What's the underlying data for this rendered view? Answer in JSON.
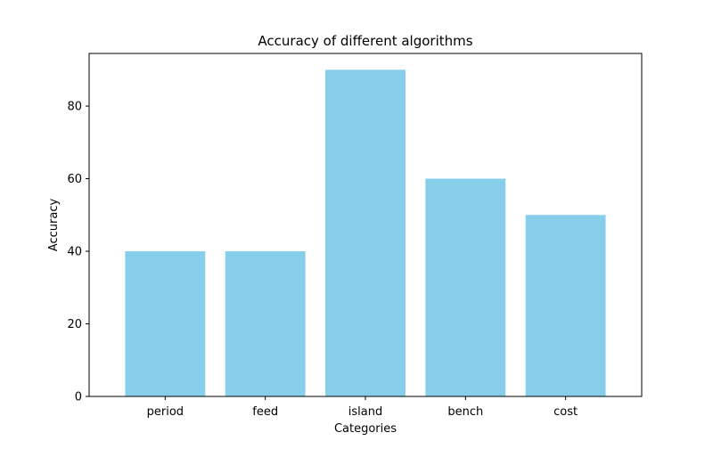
{
  "chart_data": {
    "type": "bar",
    "title": "Accuracy of different algorithms",
    "xlabel": "Categories",
    "ylabel": "Accuracy",
    "categories": [
      "period",
      "feed",
      "island",
      "bench",
      "cost"
    ],
    "values": [
      40,
      40,
      90,
      60,
      50
    ],
    "ylim": [
      0,
      94.5
    ],
    "yticks": [
      0,
      20,
      40,
      60,
      80
    ],
    "grid": false,
    "legend": "none",
    "bar_color": "#87CEEB"
  }
}
